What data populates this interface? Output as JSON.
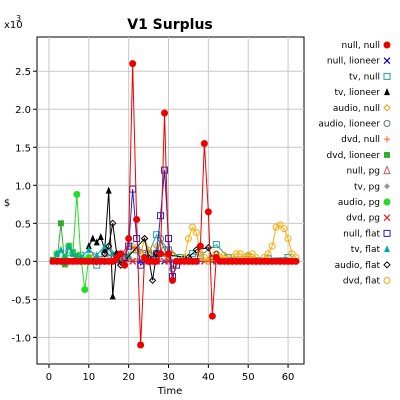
{
  "chart_data": {
    "type": "line",
    "title": "V1 Surplus",
    "xlabel": "Time",
    "ylabel": "$",
    "y_multiplier_label": "x10",
    "y_multiplier_exp": "3",
    "xlim": [
      -3,
      64
    ],
    "ylim": [
      -1.35,
      2.95
    ],
    "x_ticks": [
      0,
      10,
      20,
      30,
      40,
      50,
      60
    ],
    "y_ticks": [
      -1.0,
      -0.5,
      0.0,
      0.5,
      1.0,
      1.5,
      2.0,
      2.5
    ],
    "y_tick_labels": [
      "-1.0",
      "-0.5",
      "0.0",
      "0.5",
      "1.0",
      "1.5",
      "2.0",
      "2.5"
    ],
    "grid": true,
    "legend_position": "right",
    "series": [
      {
        "name": "null, null",
        "color": "#ee0000",
        "marker": "circle",
        "x": [
          1,
          2,
          3,
          4,
          5,
          6,
          7,
          8,
          9,
          10,
          11,
          12,
          13,
          14,
          15,
          16,
          17,
          18,
          19,
          20,
          21,
          22,
          23,
          24,
          25,
          26,
          27,
          28,
          29,
          30,
          31,
          32,
          33,
          34,
          35,
          36,
          37,
          38,
          39,
          40,
          41,
          42,
          43,
          44,
          45,
          46,
          47,
          48,
          49,
          50,
          51,
          52,
          53,
          54,
          55,
          56,
          57,
          58,
          59,
          60,
          61,
          62
        ],
        "y": [
          0,
          0,
          0,
          0,
          0,
          0,
          0,
          0,
          0,
          0,
          0,
          0,
          0,
          0,
          0,
          0,
          0.05,
          0.1,
          -0.05,
          0.3,
          2.6,
          0.55,
          -1.1,
          0.05,
          0,
          0,
          0,
          0.1,
          1.95,
          0.1,
          -0.25,
          0,
          0,
          0,
          0,
          0,
          0,
          0.2,
          1.55,
          0.65,
          -0.72,
          0.05,
          0,
          0,
          0,
          0,
          0,
          0,
          0,
          0,
          0,
          0,
          0,
          0,
          0,
          0,
          0,
          0,
          0,
          0,
          0,
          0
        ]
      },
      {
        "name": "null, lioneer",
        "color": "#0000cc",
        "marker": "x",
        "x": [
          1,
          3,
          5,
          7,
          9,
          11,
          13,
          15,
          17,
          19,
          21,
          23,
          25,
          27,
          29,
          31,
          33,
          35,
          37,
          39,
          41,
          43,
          45,
          47,
          49,
          51,
          53,
          55,
          57,
          59,
          61
        ],
        "y": [
          0,
          0,
          0,
          0,
          0,
          0,
          0,
          0,
          0,
          0,
          0,
          0,
          0,
          0,
          0,
          0,
          0,
          0,
          0,
          0,
          0,
          0,
          0,
          0,
          0,
          0,
          0,
          0,
          0,
          0,
          0
        ]
      },
      {
        "name": "tv, null",
        "color": "#20a0a0",
        "marker": "square-open",
        "x": [
          5,
          8,
          12,
          14,
          18,
          22,
          25,
          27,
          30,
          33,
          36,
          38,
          42,
          45,
          50,
          55,
          60
        ],
        "y": [
          0.12,
          0.08,
          -0.05,
          0.1,
          0.05,
          0.15,
          0.1,
          0.35,
          0.15,
          0.05,
          0.1,
          0.08,
          0.22,
          0.05,
          0.06,
          0.04,
          0.05
        ]
      },
      {
        "name": "tv, lioneer",
        "color": "#000000",
        "marker": "triangle",
        "x": [
          10,
          11,
          12,
          13,
          14,
          15,
          16,
          17,
          18
        ],
        "y": [
          0.2,
          0.3,
          0.25,
          0.32,
          0.15,
          0.93,
          -0.46,
          0.1,
          0.05
        ]
      },
      {
        "name": "audio, null",
        "color": "#ee9900",
        "marker": "diamond-open",
        "x": [
          20,
          21,
          22,
          23,
          24,
          25,
          26,
          27,
          28,
          30,
          31
        ],
        "y": [
          0.05,
          0.2,
          0.15,
          0.1,
          0.3,
          0.15,
          0.05,
          0.2,
          0.1,
          0.05,
          0.1
        ]
      },
      {
        "name": "audio, lioneer",
        "color": "#607070",
        "marker": "circle-open",
        "x": [
          27,
          28,
          29,
          30,
          31
        ],
        "y": [
          0.05,
          0.3,
          0.15,
          0.1,
          -0.1
        ]
      },
      {
        "name": "dvd, null",
        "color": "#ff7733",
        "marker": "plus",
        "x": [
          10,
          20,
          30,
          40,
          50,
          60
        ],
        "y": [
          0.02,
          0.03,
          0.02,
          0.02,
          0.03,
          0.02
        ]
      },
      {
        "name": "dvd, lioneer",
        "color": "#33aa33",
        "marker": "square",
        "x": [
          1,
          2,
          3,
          4,
          5,
          6,
          7,
          8
        ],
        "y": [
          0.02,
          0.0,
          0.5,
          -0.04,
          0.2,
          0.12,
          0.07,
          0.04
        ]
      },
      {
        "name": "null, pg",
        "color": "#cc5555",
        "marker": "triangle-open",
        "x": [
          11,
          19,
          20,
          30
        ],
        "y": [
          0.05,
          0.1,
          0.2,
          0.05
        ]
      },
      {
        "name": "tv, pg",
        "color": "#999999",
        "marker": "diamond",
        "x": [
          15,
          25,
          35,
          45
        ],
        "y": [
          0.02,
          0.03,
          0.02,
          0.02
        ]
      },
      {
        "name": "audio, pg",
        "color": "#22dd22",
        "marker": "circle",
        "x": [
          2,
          3,
          4,
          5,
          6,
          7,
          8,
          9,
          10
        ],
        "y": [
          0.1,
          0.0,
          0.05,
          0.2,
          0.1,
          0.88,
          0.05,
          -0.37,
          0.05
        ]
      },
      {
        "name": "dvd, pg",
        "color": "#ee2222",
        "marker": "x",
        "x": [
          3,
          6,
          9,
          12,
          15,
          18,
          21,
          24,
          27,
          30,
          33,
          36,
          39,
          42,
          45,
          48,
          51,
          54,
          57,
          60
        ],
        "y": [
          0,
          0,
          0,
          0,
          0,
          0,
          0,
          0,
          0,
          0,
          0,
          0,
          0,
          0,
          0,
          0,
          0,
          0,
          0,
          0
        ]
      },
      {
        "name": "null, flat",
        "color": "#2222cc",
        "marker": "square-open",
        "x": [
          19,
          20,
          21,
          22,
          23,
          27,
          28,
          29,
          30,
          31,
          32
        ],
        "y": [
          0.05,
          0.2,
          0.95,
          0.3,
          -0.05,
          0.1,
          0.6,
          1.2,
          0.3,
          -0.2,
          -0.05
        ]
      },
      {
        "name": "tv, flat",
        "color": "#00aaaa",
        "marker": "triangle",
        "x": [
          2,
          3,
          4,
          5,
          6,
          8,
          10,
          12,
          14,
          16,
          18,
          20
        ],
        "y": [
          0.1,
          0.15,
          0.05,
          0.2,
          0.1,
          0.05,
          0.15,
          0.08,
          0.2,
          0.1,
          0.05,
          0.08
        ]
      },
      {
        "name": "audio, flat",
        "color": "#000000",
        "marker": "diamond-open",
        "x": [
          14,
          15,
          16,
          17,
          18,
          24,
          25,
          26,
          27,
          35,
          37,
          40,
          41,
          42
        ],
        "y": [
          0.1,
          0.2,
          0.5,
          0.1,
          -0.05,
          0.3,
          0.05,
          -0.25,
          0.1,
          0.05,
          0.15,
          0.18,
          0.05,
          0.1
        ]
      },
      {
        "name": "dvd, flat",
        "color": "#ffaa00",
        "marker": "circle-open",
        "x": [
          34,
          35,
          36,
          37,
          38,
          39,
          40,
          41,
          42,
          43,
          44,
          45,
          46,
          47,
          48,
          49,
          50,
          51,
          52,
          53,
          54,
          55,
          56,
          57,
          58,
          59,
          60,
          61,
          62
        ],
        "y": [
          0.05,
          0.3,
          0.45,
          0.38,
          0.1,
          0.05,
          0.0,
          0.05,
          0.1,
          0.05,
          0.08,
          0.0,
          0.05,
          0.1,
          0.1,
          0.05,
          0.08,
          0.1,
          0.05,
          0.0,
          0.05,
          0.1,
          0.2,
          0.45,
          0.48,
          0.43,
          0.3,
          0.1,
          0.05
        ]
      }
    ]
  }
}
